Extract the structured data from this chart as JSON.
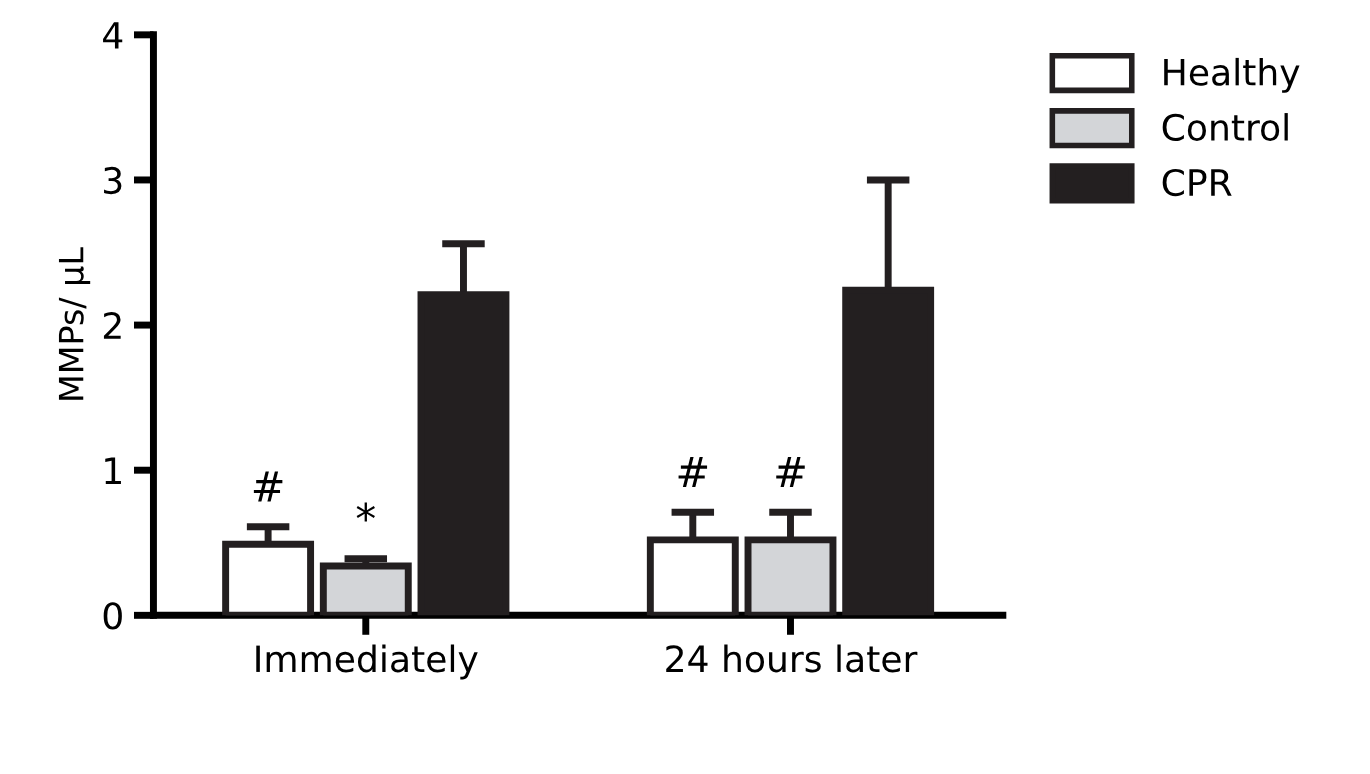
{
  "chart_data": {
    "type": "bar",
    "ylabel": "MMPs/ µL",
    "categories": [
      "Immediately",
      "24 hours later"
    ],
    "series": [
      {
        "name": "Healthy",
        "color": "#ffffff",
        "values": [
          0.49,
          0.52
        ],
        "errors": [
          [
            0.49,
            0.61
          ],
          [
            0.52,
            0.71
          ]
        ],
        "value_labels": [
          "#",
          "#"
        ]
      },
      {
        "name": "Control",
        "color": "#d3d5d8",
        "values": [
          0.34,
          0.52
        ],
        "errors": [
          [
            0.34,
            0.39
          ],
          [
            0.52,
            0.71
          ]
        ],
        "value_labels": [
          "*",
          "#"
        ]
      },
      {
        "name": "CPR",
        "color": "#231f20",
        "values": [
          2.21,
          2.24
        ],
        "errors": [
          [
            2.21,
            2.56
          ],
          [
            2.24,
            3.0
          ]
        ],
        "value_labels": [
          null,
          null
        ]
      }
    ],
    "ylim": [
      0,
      4
    ],
    "yticks": [
      0,
      1,
      2,
      3,
      4
    ],
    "grid": false,
    "legend": "top right"
  }
}
